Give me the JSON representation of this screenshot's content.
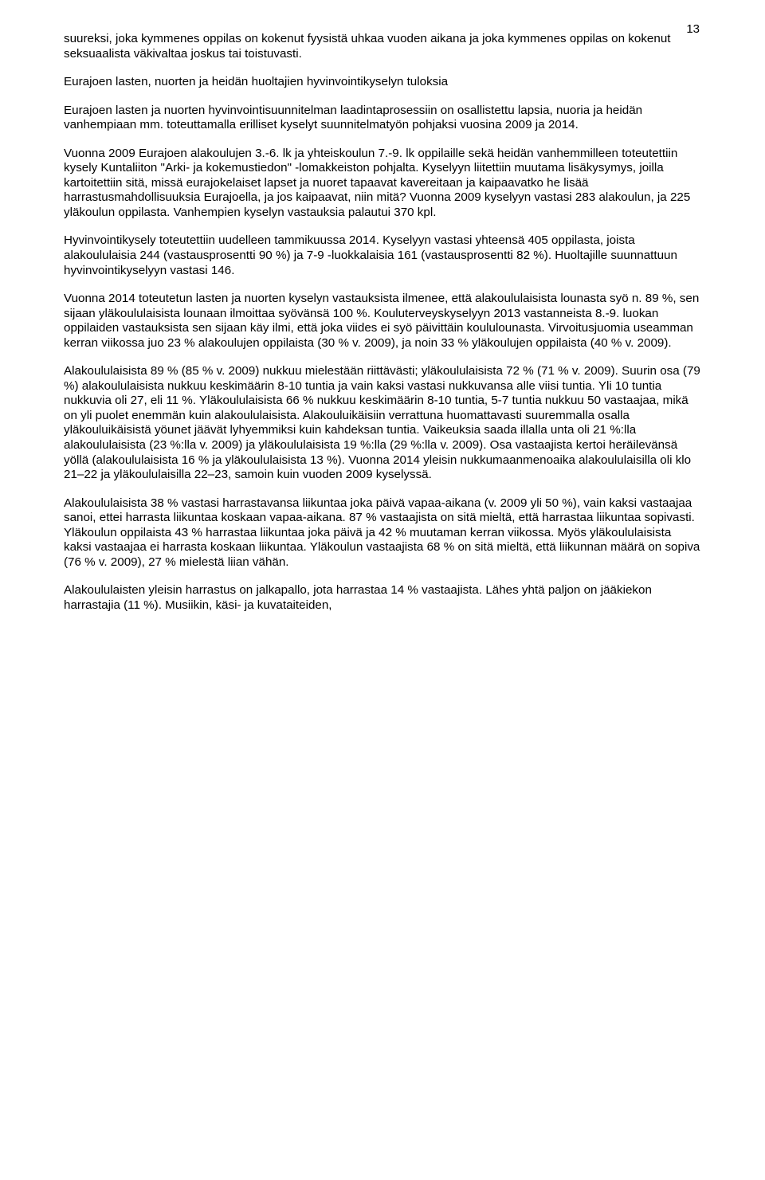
{
  "page_number": "13",
  "paragraphs": {
    "p1": "suureksi, joka kymmenes oppilas on kokenut fyysistä uhkaa vuoden aikana ja joka kymmenes oppilas on kokenut seksuaalista väkivaltaa joskus tai toistuvasti.",
    "title": "Eurajoen lasten, nuorten ja heidän huoltajien hyvinvointikyselyn tuloksia",
    "p2": "Eurajoen lasten ja nuorten hyvinvointisuunnitelman laadintaprosessiin on osallistettu lapsia, nuoria ja heidän vanhempiaan mm. toteuttamalla erilliset kyselyt suunnitelmatyön pohjaksi vuosina 2009 ja 2014.",
    "p3": "Vuonna 2009 Eurajoen alakoulujen 3.-6. lk ja yhteiskoulun 7.-9. lk oppilaille sekä heidän vanhemmilleen toteutettiin kysely Kuntaliiton \"Arki- ja kokemustiedon\" -lomakkeiston pohjalta. Kyselyyn liitettiin muutama lisäkysymys, joilla kartoitettiin sitä, missä eurajokelaiset lapset ja nuoret tapaavat kavereitaan ja kaipaavatko he lisää harrastusmahdollisuuksia Eurajoella, ja jos kaipaavat, niin mitä? Vuonna 2009 kyselyyn vastasi 283 alakoulun, ja 225 yläkoulun oppilasta. Vanhempien kyselyn vastauksia palautui 370 kpl.",
    "p4": "Hyvinvointikysely toteutettiin uudelleen tammikuussa 2014. Kyselyyn vastasi yhteensä 405 oppilasta, joista alakoululaisia 244 (vastausprosentti 90 %) ja 7-9 -luokkalaisia 161 (vastausprosentti  82 %). Huoltajille suunnattuun hyvinvointikyselyyn vastasi 146.",
    "p5": "Vuonna 2014 toteutetun lasten ja nuorten kyselyn vastauksista ilmenee, että alakoululaisista lounasta syö n. 89 %, sen sijaan yläkoululaisista lounaan ilmoittaa syövänsä 100 %. Kouluterveyskyselyyn 2013 vastanneista 8.-9. luokan oppilaiden vastauksista sen sijaan käy ilmi, että joka viides ei syö päivittäin koululounasta. Virvoitusjuomia useamman kerran viikossa juo 23 % alakoulujen oppilaista (30 % v. 2009), ja noin 33 % yläkoulujen oppilaista (40 % v. 2009).",
    "p6": "Alakoululaisista 89 % (85 % v. 2009) nukkuu mielestään riittävästi; yläkoululaisista 72 % (71 % v. 2009). Suurin osa (79 %) alakoululaisista nukkuu keskimäärin 8-10 tuntia ja vain kaksi vastasi nukkuvansa alle viisi tuntia. Yli 10 tuntia nukkuvia oli 27, eli 11 %. Yläkoululaisista 66 % nukkuu keskimäärin 8-10 tuntia, 5-7 tuntia nukkuu 50 vastaajaa, mikä on yli puolet enemmän kuin alakoululaisista. Alakouluikäisiin verrattuna huomattavasti suuremmalla osalla yläkouluikäisistä yöunet jäävät lyhyemmiksi kuin kahdeksan tuntia. Vaikeuksia saada illalla unta oli 21 %:lla alakoululaisista (23 %:lla v. 2009) ja yläkoululaisista 19 %:lla (29 %:lla v. 2009). Osa vastaajista kertoi heräilevänsä yöllä (alakoululaisista 16 % ja yläkoululaisista 13 %). Vuonna 2014 yleisin nukkumaanmenoaika alakoululaisilla oli klo 21–22 ja yläkoululaisilla 22–23, samoin kuin vuoden 2009 kyselyssä.",
    "p7": "Alakoululaisista 38 % vastasi harrastavansa liikuntaa joka päivä vapaa-aikana (v. 2009 yli 50 %), vain kaksi vastaajaa sanoi, ettei harrasta liikuntaa koskaan vapaa-aikana. 87 % vastaajista on sitä mieltä, että harrastaa liikuntaa sopivasti. Yläkoulun oppilaista 43 % harrastaa liikuntaa joka päivä ja 42 % muutaman kerran viikossa. Myös yläkoululaisista kaksi vastaajaa ei harrasta koskaan liikuntaa. Yläkoulun vastaajista 68 % on sitä mieltä, että liikunnan määrä on sopiva (76 % v. 2009), 27 % mielestä liian vähän.",
    "p8": "Alakoululaisten yleisin harrastus on jalkapallo, jota harrastaa 14 % vastaajista. Lähes yhtä paljon on jääkiekon harrastajia (11 %). Musiikin, käsi- ja kuvataiteiden,"
  }
}
